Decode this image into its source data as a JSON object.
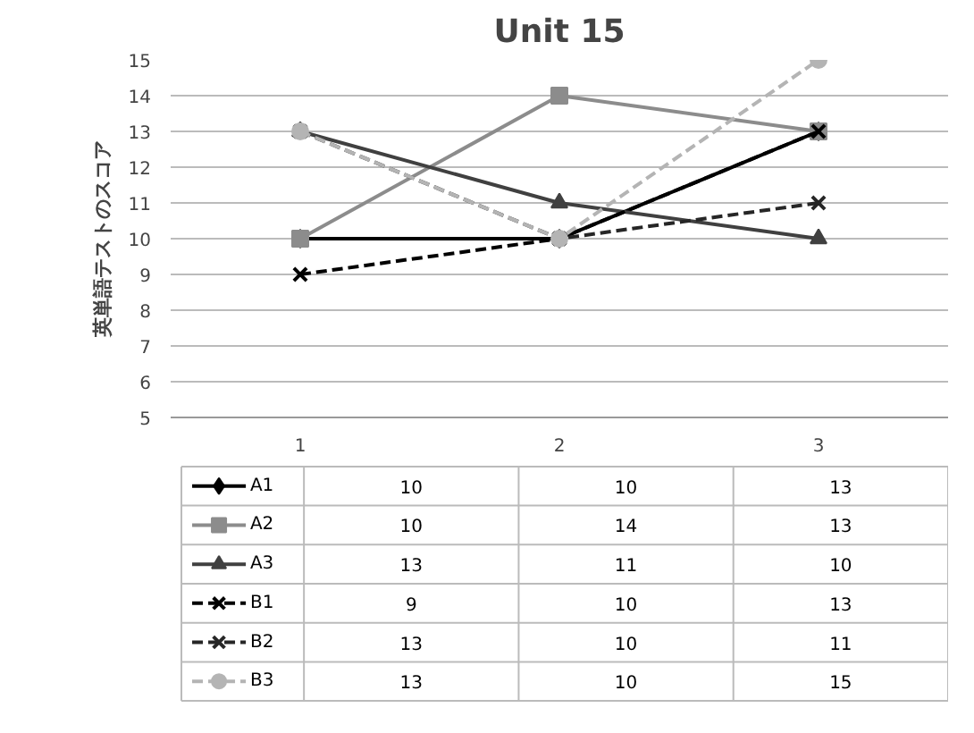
{
  "chart_data": {
    "type": "line",
    "title": "Unit 15",
    "ylabel": "英単語テストのスコア",
    "categories": [
      "1",
      "2",
      "3"
    ],
    "series": [
      {
        "name": "A1",
        "color": "#000000",
        "values": [
          10,
          10,
          13
        ],
        "marker": "diamond",
        "line_style": "solid"
      },
      {
        "name": "A2",
        "color": "#8c8c8c",
        "values": [
          10,
          14,
          13
        ],
        "marker": "square",
        "line_style": "solid"
      },
      {
        "name": "A3",
        "color": "#404040",
        "values": [
          13,
          11,
          10
        ],
        "marker": "triangle",
        "line_style": "solid"
      },
      {
        "name": "B1",
        "color": "#000000",
        "values": [
          9,
          10,
          13
        ],
        "marker": "cross",
        "line_style": "dashed"
      },
      {
        "name": "B2",
        "color": "#262626",
        "values": [
          13,
          10,
          11
        ],
        "marker": "cross",
        "line_style": "dashed"
      },
      {
        "name": "B3",
        "color": "#b4b4b4",
        "values": [
          13,
          10,
          15
        ],
        "marker": "circle",
        "line_style": "dashed"
      }
    ],
    "ylim": [
      5,
      15
    ],
    "yticks": [
      5,
      6,
      7,
      8,
      9,
      10,
      11,
      12,
      13,
      14,
      15
    ],
    "grid": "y",
    "legend": "bottom left",
    "data_labels": true
  }
}
